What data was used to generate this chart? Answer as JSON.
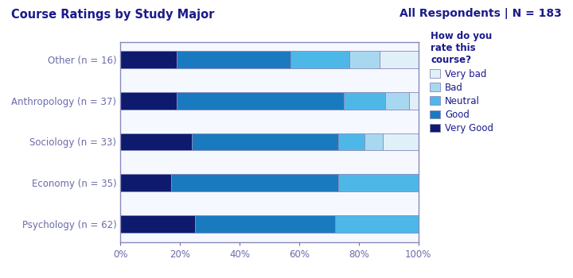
{
  "title_left": "Course Ratings by Study Major",
  "title_right": "All Respondents | N = 183",
  "legend_title": "How do you\nrate this\ncourse?",
  "categories": [
    "Other (n = 16)",
    "Anthropology (n = 37)",
    "Sociology (n = 33)",
    "Economy (n = 35)",
    "Psychology (n = 62)"
  ],
  "series": {
    "Very Good": [
      19,
      19,
      24,
      17,
      25
    ],
    "Good": [
      38,
      56,
      49,
      56,
      47
    ],
    "Neutral": [
      20,
      14,
      9,
      27,
      28
    ],
    "Bad": [
      10,
      8,
      6,
      0,
      0
    ],
    "Very bad": [
      13,
      3,
      12,
      0,
      0
    ]
  },
  "colors": {
    "Very Good": "#0d1a6e",
    "Good": "#1a7abf",
    "Neutral": "#4db8e8",
    "Bad": "#a8d8f0",
    "Very bad": "#e0f0f8"
  },
  "legend_order": [
    "Very bad",
    "Bad",
    "Neutral",
    "Good",
    "Very Good"
  ],
  "background_color": "#ffffff",
  "plot_bg_color": "#f5f8ff",
  "title_color": "#1a1a8c",
  "axis_color": "#6b6baa",
  "border_color": "#8888bb",
  "bar_height": 0.42
}
